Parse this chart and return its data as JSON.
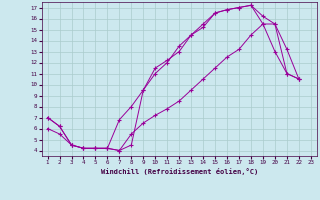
{
  "xlabel": "Windchill (Refroidissement éolien,°C)",
  "bg_color": "#cce8ee",
  "grid_color": "#aacccc",
  "line_color": "#990099",
  "xlim": [
    0.5,
    23.5
  ],
  "ylim": [
    3.5,
    17.5
  ],
  "xticks": [
    1,
    2,
    3,
    4,
    5,
    6,
    7,
    8,
    9,
    10,
    11,
    12,
    13,
    14,
    15,
    16,
    17,
    18,
    19,
    20,
    21,
    22,
    23
  ],
  "yticks": [
    4,
    5,
    6,
    7,
    8,
    9,
    10,
    11,
    12,
    13,
    14,
    15,
    16,
    17
  ],
  "line1_x": [
    1,
    2,
    3,
    4,
    5,
    6,
    7,
    8,
    9,
    10,
    11,
    12,
    13,
    14,
    15,
    16,
    17,
    18,
    19,
    20,
    21,
    22
  ],
  "line1_y": [
    7.0,
    6.2,
    4.5,
    4.2,
    4.2,
    4.2,
    6.8,
    8.0,
    9.5,
    11.0,
    12.0,
    13.5,
    14.5,
    15.5,
    16.5,
    16.8,
    17.0,
    17.2,
    15.5,
    13.0,
    11.0,
    10.5
  ],
  "line2_x": [
    1,
    2,
    3,
    4,
    5,
    6,
    7,
    8,
    9,
    10,
    11,
    12,
    13,
    14,
    15,
    16,
    17,
    18,
    19,
    20,
    21,
    22
  ],
  "line2_y": [
    7.0,
    6.2,
    4.5,
    4.2,
    4.2,
    4.2,
    4.0,
    4.5,
    9.5,
    11.5,
    12.2,
    13.0,
    14.5,
    15.2,
    16.5,
    16.8,
    17.0,
    17.2,
    16.2,
    15.5,
    11.0,
    10.5
  ],
  "line3_x": [
    1,
    2,
    3,
    4,
    5,
    6,
    7,
    8,
    9,
    10,
    11,
    12,
    13,
    14,
    15,
    16,
    17,
    18,
    19,
    20,
    21,
    22
  ],
  "line3_y": [
    6.0,
    5.5,
    4.5,
    4.2,
    4.2,
    4.2,
    4.0,
    5.5,
    6.5,
    7.2,
    7.8,
    8.5,
    9.5,
    10.5,
    11.5,
    12.5,
    13.2,
    14.5,
    15.5,
    15.5,
    13.2,
    10.5
  ]
}
